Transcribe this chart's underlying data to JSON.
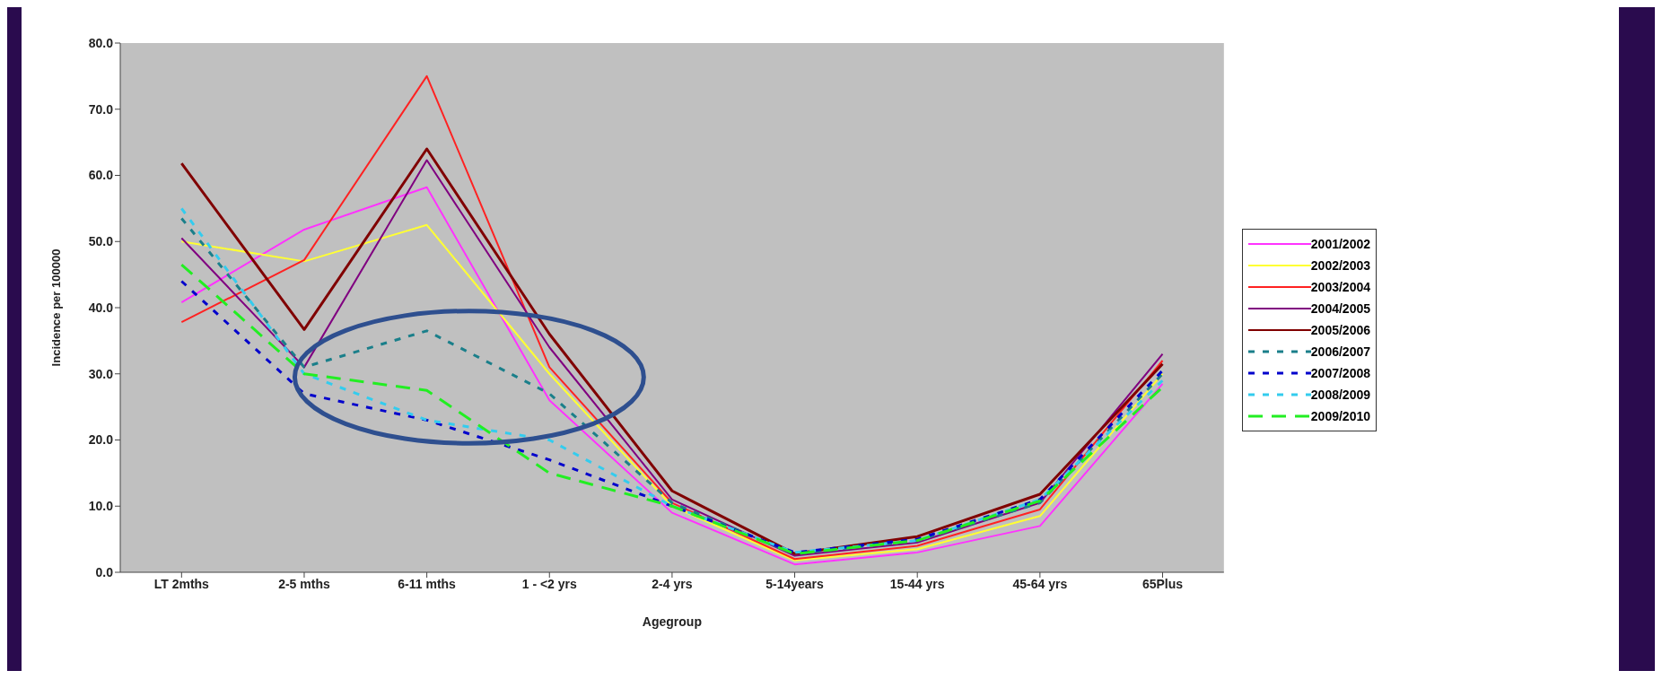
{
  "chart_data": {
    "type": "line",
    "xlabel": "Agegroup",
    "ylabel": "Incidence per 100000",
    "categories": [
      "LT 2mths",
      "2-5 mths",
      "6-11 mths",
      "1 - <2 yrs",
      "2-4 yrs",
      "5-14years",
      "15-44 yrs",
      "45-64 yrs",
      "65Plus"
    ],
    "ylim": [
      0,
      80
    ],
    "yticks": [
      {
        "value": 0,
        "label": "0.0"
      },
      {
        "value": 10,
        "label": "10.0"
      },
      {
        "value": 20,
        "label": "20.0"
      },
      {
        "value": 30,
        "label": "30.0"
      },
      {
        "value": 40,
        "label": "40.0"
      },
      {
        "value": 50,
        "label": "50.0"
      },
      {
        "value": 60,
        "label": "60.0"
      },
      {
        "value": 70,
        "label": "70.0"
      },
      {
        "value": 80,
        "label": "80.0"
      }
    ],
    "grid": false,
    "legend": "right",
    "marker": "none",
    "series": [
      {
        "name": "2001/2002",
        "color": "#ff33ff",
        "line_style": "solid",
        "values": [
          40.8,
          51.8,
          58.2,
          26,
          9,
          1.2,
          3,
          7,
          28.5
        ]
      },
      {
        "name": "2002/2003",
        "color": "#ffff33",
        "line_style": "solid",
        "values": [
          50,
          47,
          52.5,
          30,
          10,
          1.8,
          3.5,
          8.5,
          30
        ]
      },
      {
        "name": "2003/2004",
        "color": "#ff2222",
        "line_style": "solid",
        "values": [
          37.8,
          47.2,
          75,
          31,
          10.5,
          2,
          4,
          9.5,
          32
        ]
      },
      {
        "name": "2004/2005",
        "color": "#800080",
        "line_style": "solid",
        "values": [
          50.5,
          31,
          62.3,
          34,
          11,
          2.5,
          4.5,
          10.5,
          33
        ]
      },
      {
        "name": "2005/2006",
        "color": "#800000",
        "line_style": "solid",
        "values": [
          61.8,
          36.7,
          64,
          36,
          12.3,
          2.8,
          5.4,
          11.8,
          31.5
        ]
      },
      {
        "name": "2006/2007",
        "color": "#1a7f8a",
        "line_style": "dashed",
        "values": [
          53.5,
          31,
          36.5,
          27,
          10.5,
          2.8,
          4.8,
          10.5,
          30
        ]
      },
      {
        "name": "2007/2008",
        "color": "#0000cc",
        "line_style": "dashed",
        "values": [
          44,
          27,
          23,
          17,
          10,
          3,
          5,
          11,
          30.5
        ]
      },
      {
        "name": "2008/2009",
        "color": "#33ccee",
        "line_style": "dashed",
        "values": [
          55,
          30,
          23,
          20,
          10,
          3,
          4.8,
          11,
          29
        ]
      },
      {
        "name": "2009/2010",
        "color": "#22ee22",
        "line_style": "dashed",
        "values": [
          46.5,
          30,
          27.5,
          15,
          10,
          2.8,
          4.8,
          10.8,
          28
        ]
      }
    ]
  }
}
